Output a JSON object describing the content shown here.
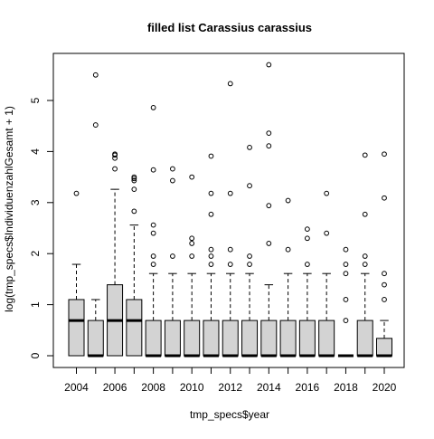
{
  "chart_data": {
    "type": "boxplot",
    "title": "filled list Carassius carassius",
    "xlabel": "tmp_specs$year",
    "ylabel": "log(tmp_specs$IndividuenzahlGesamt + 1)",
    "x_tick_labels": [
      "2004",
      "2006",
      "2008",
      "2010",
      "2012",
      "2014",
      "2016",
      "2018",
      "2020"
    ],
    "y_tick_labels": [
      "0",
      "1",
      "2",
      "3",
      "4",
      "5"
    ],
    "ylim": [
      -0.2,
      5.85
    ],
    "grid": false,
    "legend": "none",
    "box_fill": "#d3d3d3",
    "categories": [
      "2004",
      "2005",
      "2006",
      "2007",
      "2008",
      "2009",
      "2010",
      "2011",
      "2012",
      "2013",
      "2014",
      "2015",
      "2016",
      "2017",
      "2018",
      "2019",
      "2020"
    ],
    "boxes": [
      {
        "year": "2004",
        "whisker_low": 0,
        "q1": 0,
        "median": 0.69,
        "q3": 1.1,
        "whisker_high": 1.79,
        "outliers": [
          3.18
        ]
      },
      {
        "year": "2005",
        "whisker_low": 0,
        "q1": 0,
        "median": 0,
        "q3": 0.69,
        "whisker_high": 1.1,
        "outliers": [
          4.52,
          5.5
        ]
      },
      {
        "year": "2006",
        "whisker_low": 0,
        "q1": 0,
        "median": 0.69,
        "q3": 1.39,
        "whisker_high": 3.26,
        "outliers": [
          3.66,
          3.87,
          3.93,
          3.95
        ]
      },
      {
        "year": "2007",
        "whisker_low": 0,
        "q1": 0,
        "median": 0.69,
        "q3": 1.1,
        "whisker_high": 2.56,
        "outliers": [
          2.83,
          3.26,
          3.43,
          3.47,
          3.5
        ]
      },
      {
        "year": "2008",
        "whisker_low": 0,
        "q1": 0,
        "median": 0,
        "q3": 0.69,
        "whisker_high": 1.61,
        "outliers": [
          1.79,
          1.95,
          2.4,
          2.56,
          3.64,
          4.86
        ]
      },
      {
        "year": "2009",
        "whisker_low": 0,
        "q1": 0,
        "median": 0,
        "q3": 0.69,
        "whisker_high": 1.61,
        "outliers": [
          1.95,
          3.43,
          3.66
        ]
      },
      {
        "year": "2010",
        "whisker_low": 0,
        "q1": 0,
        "median": 0,
        "q3": 0.69,
        "whisker_high": 1.61,
        "outliers": [
          1.95,
          2.2,
          2.3,
          3.5
        ]
      },
      {
        "year": "2011",
        "whisker_low": 0,
        "q1": 0,
        "median": 0,
        "q3": 0.69,
        "whisker_high": 1.61,
        "outliers": [
          1.79,
          1.95,
          2.08,
          2.77,
          3.18,
          3.91
        ]
      },
      {
        "year": "2012",
        "whisker_low": 0,
        "q1": 0,
        "median": 0,
        "q3": 0.69,
        "whisker_high": 1.61,
        "outliers": [
          1.79,
          2.08,
          3.18,
          5.33
        ]
      },
      {
        "year": "2013",
        "whisker_low": 0,
        "q1": 0,
        "median": 0,
        "q3": 0.69,
        "whisker_high": 1.61,
        "outliers": [
          1.79,
          1.95,
          3.33,
          4.08
        ]
      },
      {
        "year": "2014",
        "whisker_low": 0,
        "q1": 0,
        "median": 0,
        "q3": 0.69,
        "whisker_high": 1.39,
        "outliers": [
          2.2,
          2.94,
          4.11,
          4.36,
          5.7
        ]
      },
      {
        "year": "2015",
        "whisker_low": 0,
        "q1": 0,
        "median": 0,
        "q3": 0.69,
        "whisker_high": 1.61,
        "outliers": [
          2.08,
          3.04
        ]
      },
      {
        "year": "2016",
        "whisker_low": 0,
        "q1": 0,
        "median": 0,
        "q3": 0.69,
        "whisker_high": 1.61,
        "outliers": [
          1.79,
          2.3,
          2.48
        ]
      },
      {
        "year": "2017",
        "whisker_low": 0,
        "q1": 0,
        "median": 0,
        "q3": 0.69,
        "whisker_high": 1.61,
        "outliers": [
          2.4,
          3.18
        ]
      },
      {
        "year": "2018",
        "whisker_low": 0,
        "q1": 0,
        "median": 0,
        "q3": 0,
        "whisker_high": 0,
        "outliers": [
          0.69,
          1.1,
          1.61,
          1.79,
          2.08
        ]
      },
      {
        "year": "2019",
        "whisker_low": 0,
        "q1": 0,
        "median": 0,
        "q3": 0.69,
        "whisker_high": 1.61,
        "outliers": [
          1.79,
          1.95,
          2.77,
          3.93
        ]
      },
      {
        "year": "2020",
        "whisker_low": 0,
        "q1": 0,
        "median": 0,
        "q3": 0.34,
        "whisker_high": 0.69,
        "outliers": [
          1.1,
          1.39,
          1.61,
          3.09,
          3.95
        ]
      }
    ]
  }
}
